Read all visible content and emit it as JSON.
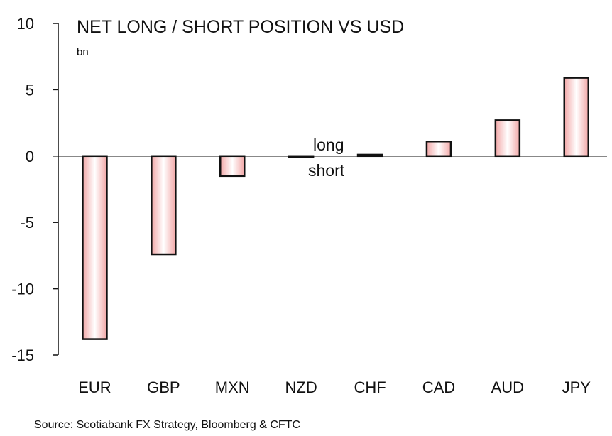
{
  "chart_data": {
    "type": "bar",
    "title": "NET LONG / SHORT POSITION VS USD",
    "unit_label": "bn",
    "categories": [
      "EUR",
      "GBP",
      "MXN",
      "NZD",
      "CHF",
      "CAD",
      "AUD",
      "JPY"
    ],
    "values": [
      -13.8,
      -7.4,
      -1.5,
      -0.1,
      0.1,
      1.1,
      2.7,
      5.9
    ],
    "ylim": [
      -15,
      10
    ],
    "yticks": [
      10,
      5,
      0,
      -5,
      -10,
      -15
    ],
    "annotations": {
      "above_zero": "long",
      "below_zero": "short"
    },
    "source": "Source: Scotiabank FX Strategy, Bloomberg & CFTC",
    "colors": {
      "bar_center": "#ffffff",
      "bar_edge": "#f2a7a7",
      "outline": "#111111",
      "axis": "#111111"
    }
  }
}
